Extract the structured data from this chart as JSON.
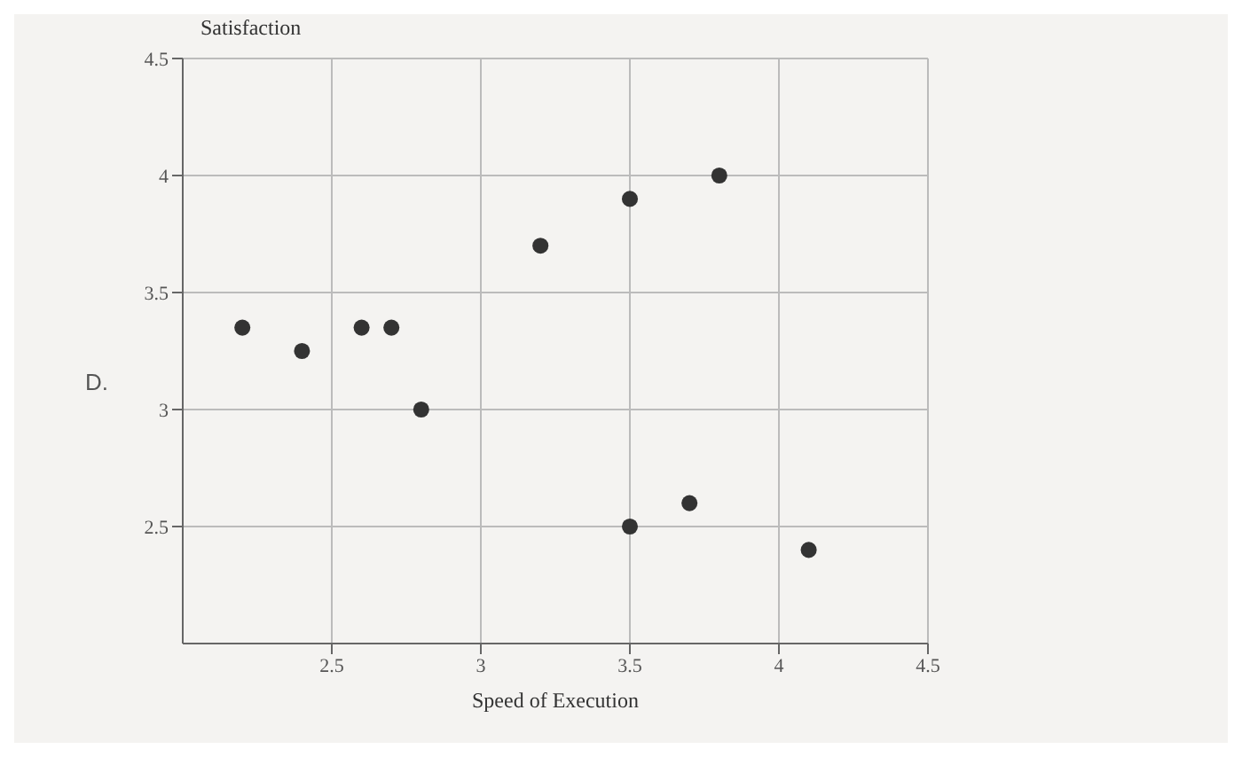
{
  "chart_data": {
    "type": "scatter",
    "xlabel": "Speed of Execution",
    "ylabel": "Satisfaction",
    "annotations": [
      "D."
    ],
    "x": [
      2.2,
      2.4,
      2.6,
      2.7,
      2.8,
      3.2,
      3.5,
      3.8,
      3.5,
      3.7,
      4.1
    ],
    "values": [
      3.35,
      3.25,
      3.35,
      3.35,
      3.0,
      3.7,
      3.9,
      4.0,
      2.5,
      2.6,
      2.4
    ],
    "color": "#333333",
    "marker": "circle",
    "grid": true,
    "xlim": [
      2,
      4.5
    ],
    "xticks": [
      2.5,
      3,
      3.5,
      4,
      4.5
    ],
    "ylim": [
      2,
      4.5
    ],
    "yticks": [
      2.5,
      3,
      3.5,
      4,
      4.5
    ]
  }
}
